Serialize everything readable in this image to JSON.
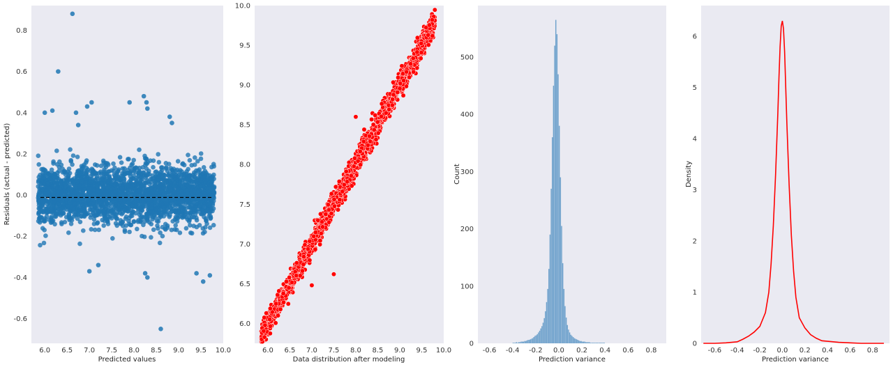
{
  "chart_data": [
    {
      "type": "scatter",
      "title": "",
      "xlabel": "Predicted values",
      "ylabel": "Residuals (actual - predicted)",
      "xlim": [
        5.7,
        10.0
      ],
      "ylim": [
        -0.72,
        0.92
      ],
      "xticks": [
        "6.0",
        "6.5",
        "7.0",
        "7.5",
        "8.0",
        "8.5",
        "9.0",
        "9.5",
        "10.0"
      ],
      "yticks": [
        "-0.6",
        "-0.4",
        "-0.2",
        "0.0",
        "0.2",
        "0.4",
        "0.6",
        "0.8"
      ],
      "grid": false,
      "point_color": "#1f77b4",
      "reference_line": {
        "y": 0.0,
        "style": "dashed",
        "color": "#000000"
      },
      "dense_band": {
        "x_range": [
          5.85,
          9.8
        ],
        "residual_sd": 0.07,
        "residual_range": [
          -0.25,
          0.25
        ]
      },
      "outliers": [
        {
          "x": 6.62,
          "y": 0.88
        },
        {
          "x": 6.3,
          "y": 0.6
        },
        {
          "x": 6.0,
          "y": 0.4
        },
        {
          "x": 6.17,
          "y": 0.41
        },
        {
          "x": 6.75,
          "y": 0.34
        },
        {
          "x": 6.7,
          "y": 0.4
        },
        {
          "x": 6.95,
          "y": 0.43
        },
        {
          "x": 7.05,
          "y": 0.45
        },
        {
          "x": 7.9,
          "y": 0.45
        },
        {
          "x": 8.22,
          "y": 0.48
        },
        {
          "x": 8.28,
          "y": 0.45
        },
        {
          "x": 8.3,
          "y": 0.42
        },
        {
          "x": 8.8,
          "y": 0.38
        },
        {
          "x": 8.85,
          "y": 0.35
        },
        {
          "x": 8.6,
          "y": -0.65
        },
        {
          "x": 8.25,
          "y": -0.38
        },
        {
          "x": 8.3,
          "y": -0.4
        },
        {
          "x": 9.55,
          "y": -0.42
        },
        {
          "x": 7.0,
          "y": -0.37
        },
        {
          "x": 7.2,
          "y": -0.34
        },
        {
          "x": 9.4,
          "y": -0.38
        },
        {
          "x": 9.7,
          "y": -0.39
        }
      ]
    },
    {
      "type": "scatter",
      "title": "",
      "xlabel": "Data distribution after modeling",
      "ylabel": "",
      "xlim": [
        5.7,
        10.0
      ],
      "ylim": [
        5.75,
        10.0
      ],
      "xticks": [
        "6.0",
        "6.5",
        "7.0",
        "7.5",
        "8.0",
        "8.5",
        "9.0",
        "9.5",
        "10.0"
      ],
      "yticks": [
        "6.0",
        "6.5",
        "7.0",
        "7.5",
        "8.0",
        "8.5",
        "9.0",
        "9.5",
        "10.0"
      ],
      "grid": false,
      "point_color": "#ff0000",
      "point_edge": "#ffffff",
      "trend": {
        "x_range": [
          5.85,
          9.8
        ],
        "slope": 1.0,
        "intercept": 0.0,
        "spread_sd": 0.07
      },
      "outliers": [
        {
          "x": 7.5,
          "y": 6.62
        },
        {
          "x": 7.0,
          "y": 6.48
        },
        {
          "x": 8.0,
          "y": 8.6
        }
      ]
    },
    {
      "type": "bar",
      "title": "",
      "xlabel": "Prediction variance",
      "ylabel": "Count",
      "xlim": [
        -0.7,
        0.93
      ],
      "ylim": [
        0,
        590
      ],
      "xticks": [
        "-0.6",
        "-0.4",
        "-0.2",
        "0.0",
        "0.2",
        "0.4",
        "0.6",
        "0.8"
      ],
      "yticks": [
        "0",
        "100",
        "200",
        "300",
        "400",
        "500"
      ],
      "grid": false,
      "bar_color": "#6fa2cc",
      "bin_width": 0.01,
      "bins_start": -0.4,
      "values": [
        1,
        1,
        1,
        2,
        1,
        2,
        2,
        3,
        3,
        3,
        4,
        4,
        5,
        6,
        6,
        7,
        8,
        9,
        11,
        13,
        14,
        16,
        19,
        22,
        26,
        30,
        36,
        44,
        56,
        72,
        95,
        130,
        190,
        270,
        360,
        450,
        520,
        565,
        540,
        470,
        380,
        290,
        205,
        140,
        95,
        65,
        45,
        32,
        24,
        19,
        15,
        13,
        11,
        9,
        8,
        7,
        6,
        5,
        4,
        4,
        3,
        3,
        3,
        2,
        2,
        2,
        2,
        1,
        1,
        1,
        1,
        1,
        1,
        1,
        1,
        1,
        1,
        1,
        1,
        1
      ]
    },
    {
      "type": "line",
      "title": "",
      "xlabel": "Prediction variance",
      "ylabel": "Density",
      "xlim": [
        -0.72,
        0.95
      ],
      "ylim": [
        0,
        6.6
      ],
      "xticks": [
        "-0.6",
        "-0.4",
        "-0.2",
        "0.0",
        "0.2",
        "0.4",
        "0.6",
        "0.8"
      ],
      "yticks": [
        "0",
        "1",
        "2",
        "3",
        "4",
        "5",
        "6"
      ],
      "grid": false,
      "line_color": "#ff0000",
      "x": [
        -0.7,
        -0.6,
        -0.5,
        -0.4,
        -0.35,
        -0.3,
        -0.25,
        -0.2,
        -0.15,
        -0.12,
        -0.1,
        -0.08,
        -0.06,
        -0.04,
        -0.03,
        -0.02,
        -0.01,
        0.0,
        0.01,
        0.02,
        0.03,
        0.04,
        0.06,
        0.08,
        0.1,
        0.12,
        0.15,
        0.2,
        0.25,
        0.3,
        0.35,
        0.4,
        0.5,
        0.6,
        0.7,
        0.8,
        0.9
      ],
      "y": [
        0.0,
        0.0,
        0.01,
        0.03,
        0.08,
        0.14,
        0.22,
        0.33,
        0.6,
        1.0,
        1.55,
        2.3,
        3.3,
        4.5,
        5.2,
        5.8,
        6.2,
        6.3,
        6.15,
        5.7,
        5.0,
        4.3,
        3.1,
        2.1,
        1.4,
        0.9,
        0.5,
        0.3,
        0.17,
        0.1,
        0.05,
        0.04,
        0.02,
        0.01,
        0.0,
        0.0,
        0.0
      ]
    }
  ]
}
